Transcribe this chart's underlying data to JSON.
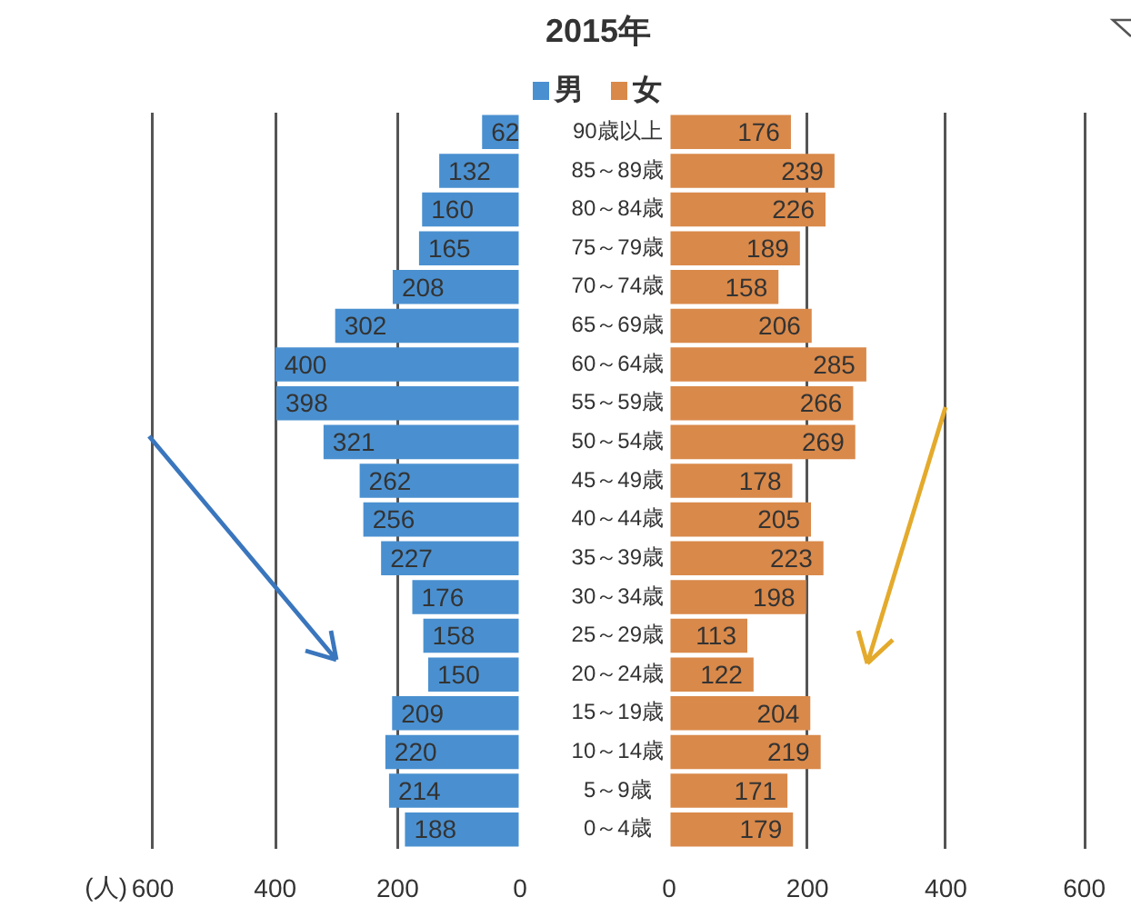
{
  "chart_data": [
    {
      "type": "bar",
      "orientation": "horizontal",
      "xlabel": "(人)",
      "categories": [
        null,
        null,
        null,
        null,
        null,
        null,
        null,
        null,
        null,
        null,
        null,
        null,
        null,
        null,
        null,
        null,
        null,
        null,
        null
      ],
      "series": [
        {
          "name": "男",
          "color": "#4a90d0",
          "values": [
            62,
            132,
            160,
            165,
            208,
            302,
            400,
            398,
            321,
            262,
            256,
            227,
            176,
            158,
            150,
            209,
            220,
            214,
            188
          ]
        }
      ],
      "xlim": [
        600,
        0
      ],
      "xticks": [
        600,
        400,
        200,
        0
      ],
      "grid": "x",
      "legend": "top",
      "data_labels": true,
      "tick_labels": "x"
    },
    {
      "type": "bar",
      "orientation": "horizontal",
      "title": "2015年",
      "categories": [
        "90歳以上",
        "85～89歳",
        "80～84歳",
        "75～79歳",
        "70～74歳",
        "65～69歳",
        "60～64歳",
        "55～59歳",
        "50～54歳",
        "45～49歳",
        "40～44歳",
        "35～39歳",
        "30～34歳",
        "25～29歳",
        "20～24歳",
        "15～19歳",
        "10～14歳",
        "5～9歳",
        "0～4歳"
      ],
      "series": [
        {
          "name": "女",
          "color": "#d9894a",
          "values": [
            176,
            239,
            226,
            189,
            158,
            206,
            285,
            266,
            269,
            178,
            205,
            223,
            198,
            113,
            122,
            204,
            219,
            171,
            179
          ]
        }
      ],
      "xlim": [
        0,
        600
      ],
      "xticks": [
        0,
        200,
        400,
        600
      ],
      "grid": "x",
      "legend": "top",
      "data_labels": true
    }
  ]
}
